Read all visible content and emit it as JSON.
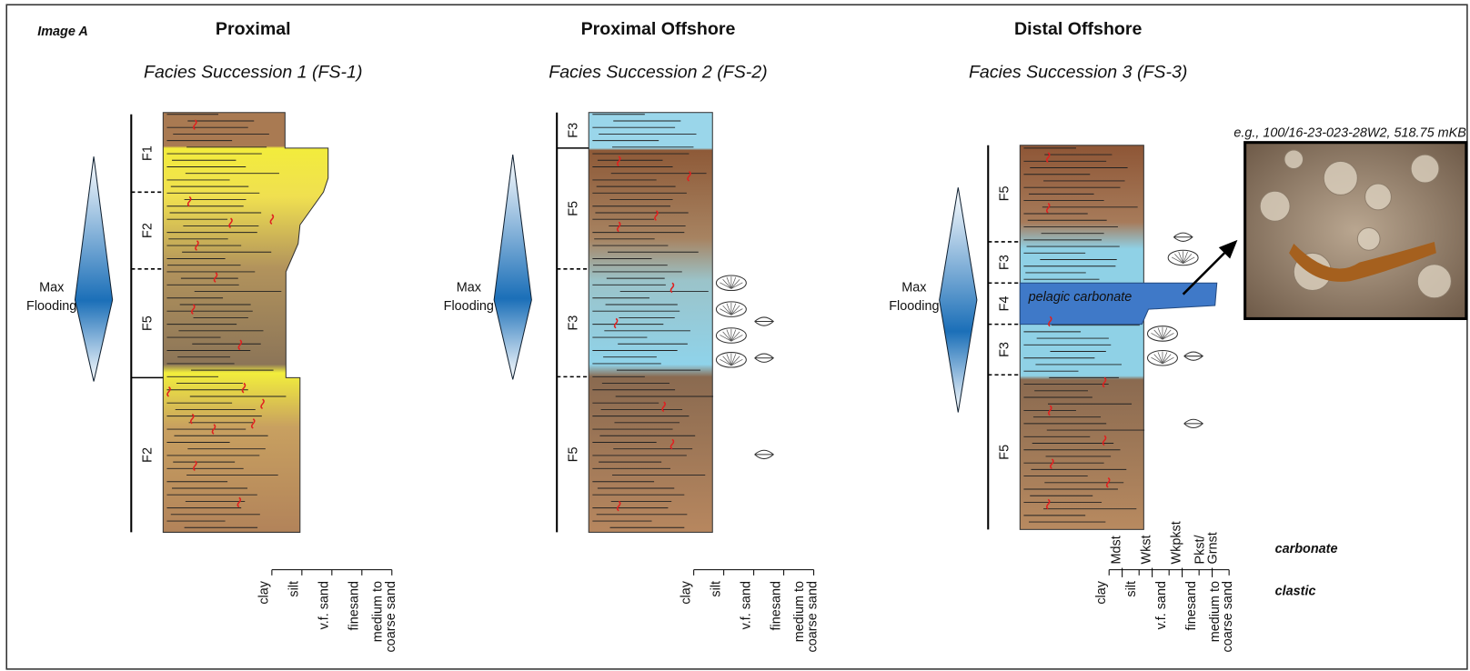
{
  "image_label": "Image A",
  "columns": [
    {
      "title": "Proximal",
      "subtitle": "Facies Succession 1 (FS-1)",
      "flooding": [
        "Max",
        "Flooding"
      ],
      "facies": [
        "F1",
        "F2",
        "F5",
        "F2"
      ],
      "scale": [
        [
          "clay"
        ],
        [
          "silt"
        ],
        [
          "v.f. sand"
        ],
        [
          "finesand"
        ],
        [
          "medium to",
          "coarse sand"
        ]
      ]
    },
    {
      "title": "Proximal Offshore",
      "subtitle": "Facies Succession 2 (FS-2)",
      "flooding": [
        "Max",
        "Flooding"
      ],
      "facies": [
        "F3",
        "F5",
        "F3",
        "F5"
      ],
      "scale": [
        [
          "clay"
        ],
        [
          "silt"
        ],
        [
          "v.f. sand"
        ],
        [
          "finesand"
        ],
        [
          "medium to",
          "coarse sand"
        ]
      ]
    },
    {
      "title": "Distal Offshore",
      "subtitle": "Facies Succession 3 (FS-3)",
      "flooding": [
        "Max",
        "Flooding"
      ],
      "facies": [
        "F5",
        "F3",
        "F4",
        "F3",
        "F5"
      ],
      "scale": [
        [
          "clay"
        ],
        [
          "silt"
        ],
        [
          "v.f. sand"
        ],
        [
          "finesand"
        ],
        [
          "medium to",
          "coarse sand"
        ]
      ],
      "carbonate_scale": [
        [
          "Mdst"
        ],
        [
          "Wkst"
        ],
        [
          "Wkpkst"
        ],
        [
          "Pkst/",
          "Grnst"
        ]
      ]
    }
  ],
  "carbonate_label": "carbonate",
  "clastic_label": "clastic",
  "pelagic_label": "pelagic carbonate",
  "photo_caption": "e.g., 100/16-23-023-28W2, 518.75 mKB"
}
